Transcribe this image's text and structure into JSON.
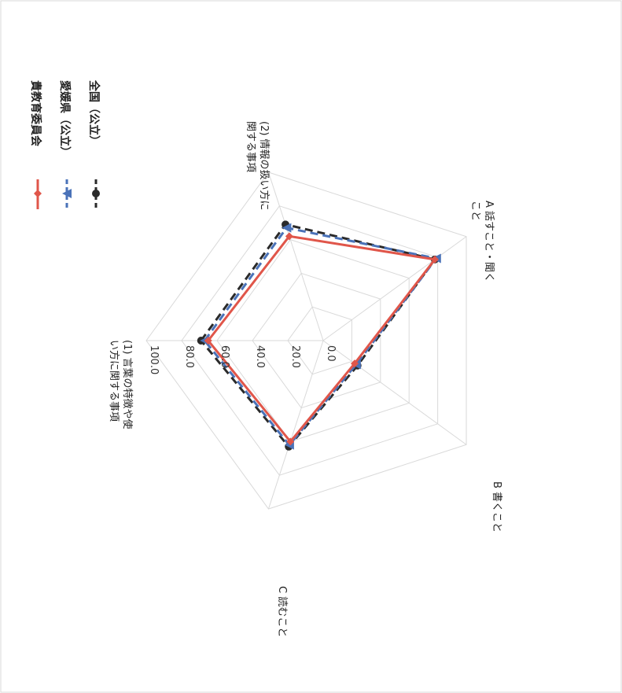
{
  "chart_data": {
    "type": "radar",
    "orientation": "rotated-90-clockwise",
    "axes": [
      [
        "(1) 言葉の特徴や使",
        "い方に関する事項"
      ],
      [
        "(2) 情報の扱い方に",
        "関する事項"
      ],
      [
        "A 話すこと・聞く",
        "こと"
      ],
      [
        "B 書くこと"
      ],
      [
        "C 読むこと"
      ]
    ],
    "r_ticks": [
      "0.0",
      "20.0",
      "40.0",
      "60.0",
      "80.0",
      "100.0"
    ],
    "r_range": [
      0,
      100
    ],
    "grid": true,
    "legend_position": "top-right",
    "series": [
      {
        "name": "貴教育委員会",
        "values": [
          65,
          62,
          78,
          22,
          60
        ],
        "color": "#e0564a",
        "style": "solid",
        "marker": "diamond"
      },
      {
        "name": "愛媛県（公立）",
        "values": [
          67,
          67,
          79,
          23,
          62
        ],
        "color": "#4a72b8",
        "style": "dashed",
        "marker": "triangle"
      },
      {
        "name": "全国（公立）",
        "values": [
          69,
          69,
          78,
          24,
          63
        ],
        "color": "#2a2a2a",
        "style": "dashed",
        "marker": "circle"
      }
    ]
  }
}
